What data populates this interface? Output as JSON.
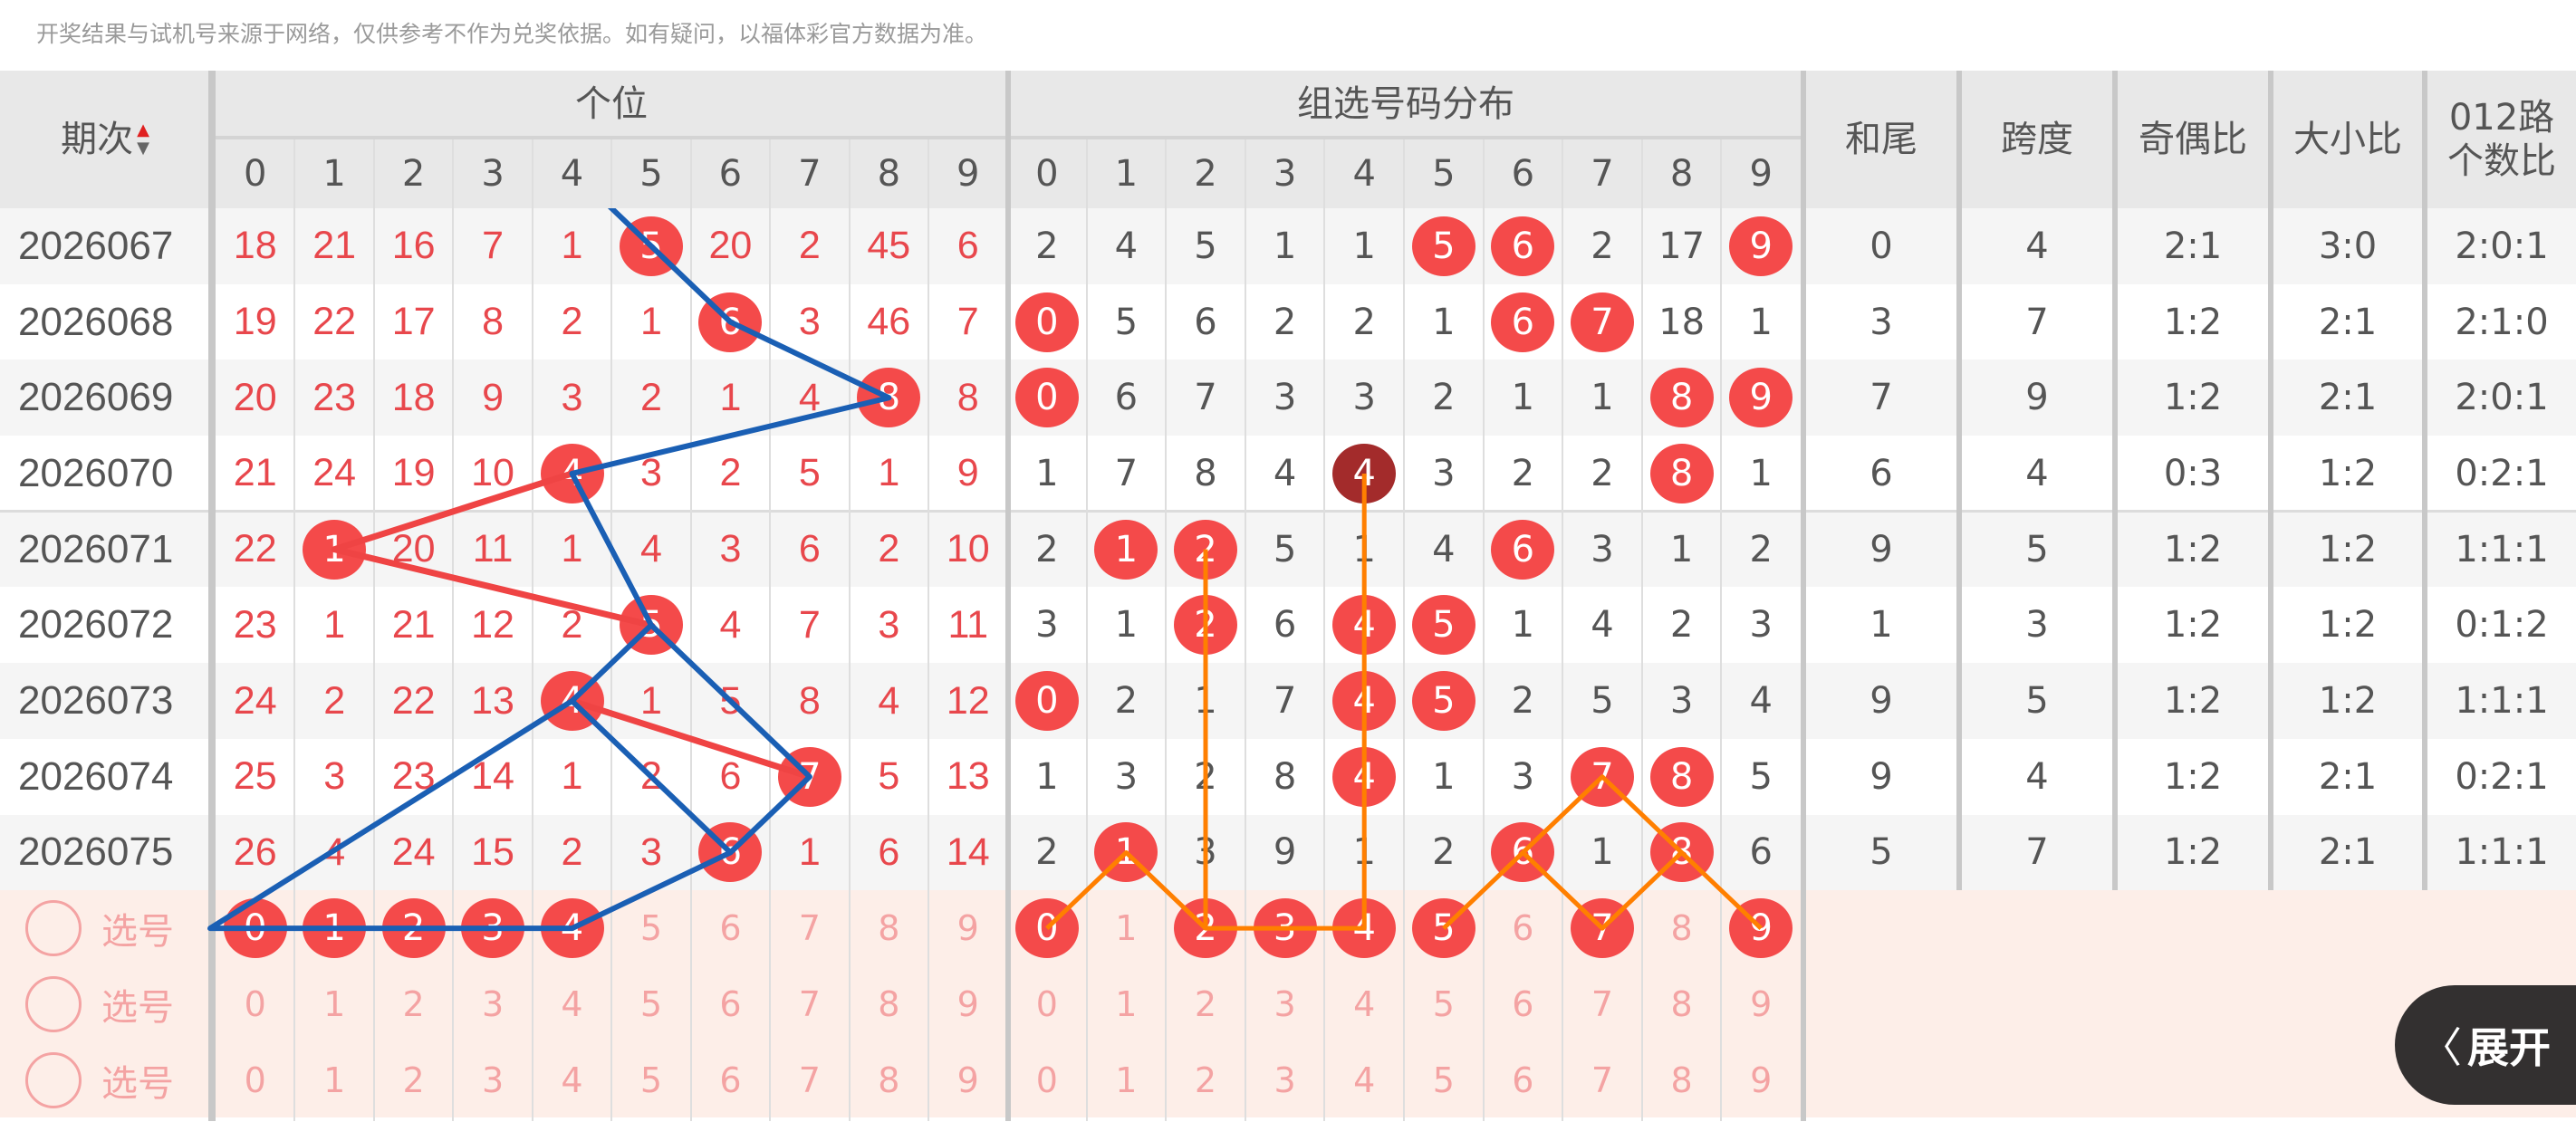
{
  "notice": "开奖结果与试机号来源于网络，仅供参考不作为兑奖依据。如有疑问，以福体彩官方数据为准。",
  "header": {
    "period": "期次",
    "sort_up": "▲",
    "sort_down": "▼",
    "gewei": "个位",
    "zuxuan": "组选号码分布",
    "digits": [
      "0",
      "1",
      "2",
      "3",
      "4",
      "5",
      "6",
      "7",
      "8",
      "9"
    ],
    "hewei": "和尾",
    "kuadu": "跨度",
    "jiou": "奇偶比",
    "daxiao": "大小比",
    "lu012_line1": "012路",
    "lu012_line2": "个数比"
  },
  "colors": {
    "ball": "#f44a4a",
    "ball_repeat": "#a32b2b",
    "miss_text": "#e8474c",
    "blue_line": "#1a5fb4",
    "red_line": "#ef4444",
    "orange_line": "#ff7f00",
    "pick_bg": "#fdeee8"
  },
  "rows": [
    {
      "period": "2026067",
      "gewei": [
        18,
        21,
        16,
        7,
        1,
        5,
        20,
        2,
        45,
        6
      ],
      "gewei_hit": 5,
      "zuxuan": [
        2,
        4,
        5,
        1,
        1,
        5,
        6,
        2,
        17,
        9
      ],
      "zuxuan_hits": [
        5,
        6,
        9
      ],
      "zuxuan_repeat": [],
      "hewei": "0",
      "kuadu": "4",
      "jiou": "2:1",
      "daxiao": "3:0",
      "lu012": "2:0:1"
    },
    {
      "period": "2026068",
      "gewei": [
        19,
        22,
        17,
        8,
        2,
        1,
        6,
        3,
        46,
        7
      ],
      "gewei_hit": 6,
      "zuxuan": [
        0,
        5,
        6,
        2,
        2,
        1,
        6,
        7,
        18,
        1
      ],
      "zuxuan_hits": [
        0,
        6,
        7
      ],
      "zuxuan_repeat": [],
      "hewei": "3",
      "kuadu": "7",
      "jiou": "1:2",
      "daxiao": "2:1",
      "lu012": "2:1:0"
    },
    {
      "period": "2026069",
      "gewei": [
        20,
        23,
        18,
        9,
        3,
        2,
        1,
        4,
        8,
        8
      ],
      "gewei_hit": 8,
      "zuxuan": [
        0,
        6,
        7,
        3,
        3,
        2,
        1,
        1,
        8,
        9
      ],
      "zuxuan_hits": [
        0,
        8,
        9
      ],
      "zuxuan_repeat": [],
      "hewei": "7",
      "kuadu": "9",
      "jiou": "1:2",
      "daxiao": "2:1",
      "lu012": "2:0:1"
    },
    {
      "period": "2026070",
      "gewei": [
        21,
        24,
        19,
        10,
        4,
        3,
        2,
        5,
        1,
        9
      ],
      "gewei_hit": 4,
      "zuxuan": [
        1,
        7,
        8,
        4,
        4,
        3,
        2,
        2,
        8,
        1
      ],
      "zuxuan_hits": [
        4,
        8
      ],
      "zuxuan_repeat": [
        4
      ],
      "hewei": "6",
      "kuadu": "4",
      "jiou": "0:3",
      "daxiao": "1:2",
      "lu012": "0:2:1"
    },
    {
      "period": "2026071",
      "gewei": [
        22,
        1,
        20,
        11,
        1,
        4,
        3,
        6,
        2,
        10
      ],
      "gewei_hit": 1,
      "zuxuan": [
        2,
        1,
        2,
        5,
        1,
        4,
        6,
        3,
        1,
        2
      ],
      "zuxuan_hits": [
        1,
        2,
        6
      ],
      "zuxuan_repeat": [],
      "hewei": "9",
      "kuadu": "5",
      "jiou": "1:2",
      "daxiao": "1:2",
      "lu012": "1:1:1"
    },
    {
      "period": "2026072",
      "gewei": [
        23,
        1,
        21,
        12,
        2,
        5,
        4,
        7,
        3,
        11
      ],
      "gewei_hit": 5,
      "zuxuan": [
        3,
        1,
        2,
        6,
        4,
        5,
        1,
        4,
        2,
        3
      ],
      "zuxuan_hits": [
        2,
        4,
        5
      ],
      "zuxuan_repeat": [],
      "hewei": "1",
      "kuadu": "3",
      "jiou": "1:2",
      "daxiao": "1:2",
      "lu012": "0:1:2"
    },
    {
      "period": "2026073",
      "gewei": [
        24,
        2,
        22,
        13,
        4,
        1,
        5,
        8,
        4,
        12
      ],
      "gewei_hit": 4,
      "zuxuan": [
        0,
        2,
        1,
        7,
        4,
        5,
        2,
        5,
        3,
        4
      ],
      "zuxuan_hits": [
        0,
        4,
        5
      ],
      "zuxuan_repeat": [],
      "hewei": "9",
      "kuadu": "5",
      "jiou": "1:2",
      "daxiao": "1:2",
      "lu012": "1:1:1"
    },
    {
      "period": "2026074",
      "gewei": [
        25,
        3,
        23,
        14,
        1,
        2,
        6,
        7,
        5,
        13
      ],
      "gewei_hit": 7,
      "zuxuan": [
        1,
        3,
        2,
        8,
        4,
        1,
        3,
        7,
        8,
        5
      ],
      "zuxuan_hits": [
        4,
        7,
        8
      ],
      "zuxuan_repeat": [],
      "hewei": "9",
      "kuadu": "4",
      "jiou": "1:2",
      "daxiao": "2:1",
      "lu012": "0:2:1"
    },
    {
      "period": "2026075",
      "gewei": [
        26,
        4,
        24,
        15,
        2,
        3,
        6,
        1,
        6,
        14
      ],
      "gewei_hit": 6,
      "zuxuan": [
        2,
        1,
        3,
        9,
        1,
        2,
        6,
        1,
        8,
        6
      ],
      "zuxuan_hits": [
        1,
        6,
        8
      ],
      "zuxuan_repeat": [],
      "hewei": "5",
      "kuadu": "7",
      "jiou": "1:2",
      "daxiao": "2:1",
      "lu012": "1:1:1"
    }
  ],
  "pick_rows": [
    {
      "label": "选号",
      "gewei_selected": [
        0,
        1,
        2,
        3,
        4
      ],
      "zuxuan_selected": [
        0,
        2,
        3,
        4,
        5,
        7,
        9
      ]
    },
    {
      "label": "选号",
      "gewei_selected": [],
      "zuxuan_selected": []
    },
    {
      "label": "选号",
      "gewei_selected": [],
      "zuxuan_selected": []
    }
  ],
  "trend_lines": {
    "gewei_red": [
      [
        [
          3,
          4
        ],
        [
          4,
          1
        ],
        [
          5,
          5
        ]
      ],
      [
        [
          6,
          4
        ],
        [
          7,
          7
        ]
      ]
    ],
    "gewei_blue": [
      [
        [
          -1,
          4
        ],
        [
          0,
          5
        ],
        [
          1,
          6
        ],
        [
          2,
          8
        ],
        [
          3,
          4
        ],
        [
          5,
          5
        ],
        [
          7,
          7
        ],
        [
          8,
          6
        ],
        [
          9,
          4
        ],
        [
          9,
          0
        ],
        [
          6,
          4
        ],
        [
          5,
          5
        ]
      ],
      [
        [
          6,
          4
        ],
        [
          8,
          6
        ]
      ]
    ],
    "zuxuan_orange": [
      [
        [
          4,
          2
        ],
        [
          9,
          2
        ],
        [
          9,
          4
        ],
        [
          3,
          4
        ]
      ],
      [
        [
          9,
          0
        ],
        [
          8,
          1
        ],
        [
          9,
          2
        ]
      ],
      [
        [
          9,
          5
        ],
        [
          8,
          6
        ],
        [
          7,
          7
        ],
        [
          8,
          8
        ],
        [
          9,
          9
        ]
      ],
      [
        [
          8,
          6
        ],
        [
          9,
          7
        ],
        [
          8,
          8
        ]
      ]
    ]
  },
  "expand_button": {
    "icon": "chevron-left-icon",
    "chevron": "〈",
    "label": "展开"
  }
}
